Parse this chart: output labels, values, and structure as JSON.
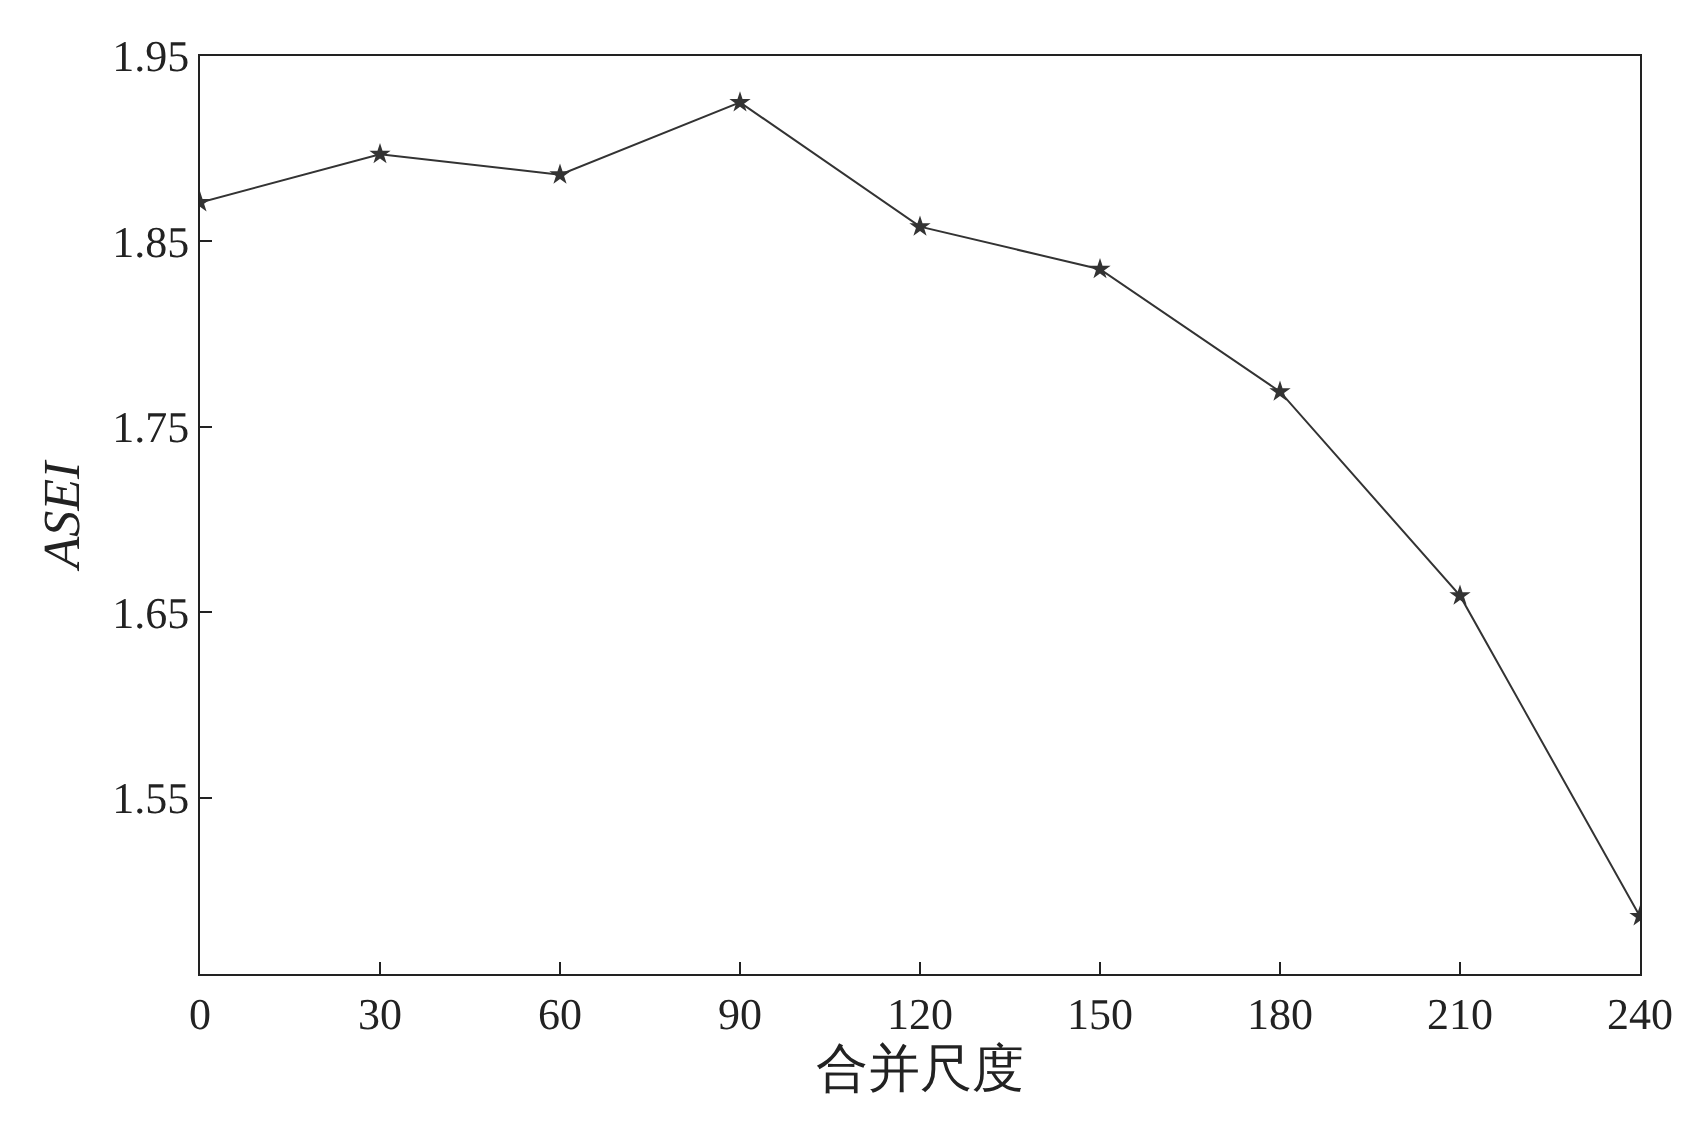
{
  "chart_data": {
    "type": "line",
    "xlabel": "合并尺度",
    "ylabel": "ASEI",
    "x": [
      0,
      30,
      60,
      90,
      120,
      150,
      180,
      210,
      240
    ],
    "series": [
      {
        "color": "#333333",
        "values": [
          1.871,
          1.897,
          1.886,
          1.925,
          1.858,
          1.835,
          1.769,
          1.659,
          1.486
        ]
      }
    ],
    "xlim": [
      0,
      240
    ],
    "xticks": [
      0,
      30,
      60,
      90,
      120,
      150,
      180,
      210,
      240
    ],
    "ylim": [
      1.455,
      1.95
    ],
    "yticks": [
      1.55,
      1.65,
      1.75,
      1.85,
      1.95
    ],
    "grid": false,
    "marker": "star",
    "line_style": "solid"
  }
}
